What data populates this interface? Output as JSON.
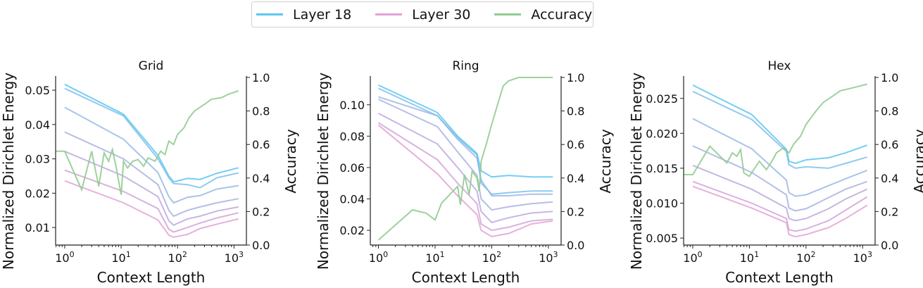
{
  "legend": {
    "items": [
      {
        "label": "Layer 18",
        "color": "#5cc6f2"
      },
      {
        "label": "Layer 30",
        "color": "#e3a2d4"
      },
      {
        "label": "Accuracy",
        "color": "#92cc92"
      }
    ]
  },
  "colors": {
    "energy_gradient": [
      "#5cc6f2",
      "#7fc0ea",
      "#9bb8e6",
      "#aab1e2",
      "#bca9de",
      "#d2a5d8",
      "#e3a2d4"
    ],
    "accuracy": "#92cc92"
  },
  "chart_data": [
    {
      "type": "line",
      "title": "Grid",
      "xlabel": "Context Length",
      "ylabel": "Normalized Dirichlet Energy",
      "y2label": "Accuracy",
      "xscale": "log",
      "xlim": [
        0.69,
        1660
      ],
      "xticks": [
        "10^0",
        "10^1",
        "10^2",
        "10^3"
      ],
      "ylim": [
        0.0049,
        0.0537
      ],
      "yticks": [
        0.01,
        0.02,
        0.03,
        0.04,
        0.05
      ],
      "ytick_labels": [
        "0.01",
        "0.02",
        "0.03",
        "0.04",
        "0.05"
      ],
      "y2lim": [
        0,
        1
      ],
      "y2ticks": [
        "0.0",
        "0.2",
        "0.4",
        "0.6",
        "0.8",
        "1.0"
      ],
      "energy_x": [
        1,
        11,
        45,
        70,
        85,
        150,
        250,
        500,
        1200
      ],
      "energy_series": [
        [
          0.0517,
          0.043,
          0.031,
          0.025,
          0.0233,
          0.0243,
          0.024,
          0.0258,
          0.0274
        ],
        [
          0.0505,
          0.0425,
          0.03,
          0.0245,
          0.0228,
          0.0225,
          0.0216,
          0.0245,
          0.0259
        ],
        [
          0.045,
          0.0357,
          0.026,
          0.019,
          0.0172,
          0.0188,
          0.0193,
          0.0212,
          0.0222
        ],
        [
          0.0378,
          0.03,
          0.0225,
          0.015,
          0.0133,
          0.015,
          0.016,
          0.0172,
          0.0184
        ],
        [
          0.0322,
          0.025,
          0.019,
          0.012,
          0.0107,
          0.0125,
          0.0133,
          0.0148,
          0.016
        ],
        [
          0.0267,
          0.0205,
          0.0155,
          0.0095,
          0.0087,
          0.01,
          0.0113,
          0.0128,
          0.0143
        ],
        [
          0.0236,
          0.0172,
          0.0122,
          0.0078,
          0.0072,
          0.008,
          0.0097,
          0.011,
          0.0125
        ]
      ],
      "accuracy_x": [
        0.69,
        1,
        2,
        3,
        4,
        5,
        6,
        7,
        8,
        10,
        11,
        13,
        16,
        20,
        25,
        30,
        40,
        50,
        60,
        70,
        85,
        100,
        130,
        160,
        200,
        300,
        400,
        600,
        800,
        1200
      ],
      "accuracy": [
        0.56,
        0.56,
        0.33,
        0.56,
        0.35,
        0.55,
        0.5,
        0.57,
        0.48,
        0.3,
        0.5,
        0.46,
        0.5,
        0.51,
        0.47,
        0.52,
        0.5,
        0.56,
        0.54,
        0.62,
        0.6,
        0.66,
        0.7,
        0.76,
        0.8,
        0.84,
        0.87,
        0.88,
        0.9,
        0.92
      ]
    },
    {
      "type": "line",
      "title": "Ring",
      "xlabel": "Context Length",
      "ylabel": "Normalized Dirichlet Energy",
      "y2label": "Accuracy",
      "xscale": "log",
      "xlim": [
        0.72,
        1680
      ],
      "xticks": [
        "10^0",
        "10^1",
        "10^2",
        "10^3"
      ],
      "ylim": [
        0.0106,
        0.1174
      ],
      "yticks": [
        0.02,
        0.04,
        0.06,
        0.08,
        0.1
      ],
      "ytick_labels": [
        "0.02",
        "0.04",
        "0.06",
        "0.08",
        "0.10"
      ],
      "y2lim": [
        0,
        1
      ],
      "y2ticks": [
        "0.0",
        "0.2",
        "0.4",
        "0.6",
        "0.8",
        "1.0"
      ],
      "energy_x": [
        1,
        11,
        25,
        55,
        65,
        100,
        200,
        500,
        1200
      ],
      "energy_series": [
        [
          0.1125,
          0.095,
          0.08,
          0.069,
          0.058,
          0.054,
          0.055,
          0.054,
          0.054
        ],
        [
          0.1105,
          0.093,
          0.079,
          0.068,
          0.05,
          0.043,
          0.044,
          0.045,
          0.045
        ],
        [
          0.105,
          0.093,
          0.078,
          0.066,
          0.052,
          0.042,
          0.042,
          0.043,
          0.043
        ],
        [
          0.1035,
          0.086,
          0.07,
          0.055,
          0.04,
          0.033,
          0.035,
          0.037,
          0.038
        ],
        [
          0.0945,
          0.075,
          0.06,
          0.045,
          0.032,
          0.025,
          0.028,
          0.031,
          0.032
        ],
        [
          0.0885,
          0.065,
          0.05,
          0.037,
          0.024,
          0.02,
          0.022,
          0.026,
          0.027
        ],
        [
          0.087,
          0.056,
          0.042,
          0.03,
          0.02,
          0.016,
          0.018,
          0.024,
          0.026
        ]
      ],
      "accuracy_x": [
        1,
        4,
        7,
        10,
        13,
        25,
        28,
        33,
        40,
        45,
        55,
        60,
        65,
        80,
        100,
        130,
        160,
        200,
        300,
        1200
      ],
      "accuracy": [
        0.03,
        0.21,
        0.19,
        0.15,
        0.25,
        0.35,
        0.24,
        0.42,
        0.3,
        0.44,
        0.4,
        0.32,
        0.5,
        0.6,
        0.72,
        0.85,
        0.95,
        0.98,
        1.0,
        1.0
      ]
    },
    {
      "type": "line",
      "title": "Hex",
      "xlabel": "Context Length",
      "ylabel": "Normalized Dirichlet Energy",
      "y2label": "Accuracy",
      "xscale": "log",
      "xlim": [
        0.69,
        1660
      ],
      "xticks": [
        "10^0",
        "10^1",
        "10^2",
        "10^3"
      ],
      "ylim": [
        0.004,
        0.028
      ],
      "yticks": [
        0.005,
        0.01,
        0.015,
        0.02,
        0.025
      ],
      "ytick_labels": [
        "0.005",
        "0.010",
        "0.015",
        "0.020",
        "0.025"
      ],
      "y2lim": [
        0,
        1
      ],
      "y2ticks": [
        "0.0",
        "0.2",
        "0.4",
        "0.6",
        "0.8",
        "1.0"
      ],
      "energy_x": [
        1,
        11,
        45,
        50,
        65,
        100,
        250,
        500,
        1200
      ],
      "energy_series": [
        [
          0.0269,
          0.0227,
          0.0177,
          0.016,
          0.0157,
          0.0162,
          0.0165,
          0.0172,
          0.0183
        ],
        [
          0.026,
          0.022,
          0.0174,
          0.0155,
          0.015,
          0.0152,
          0.015,
          0.0157,
          0.0166
        ],
        [
          0.0221,
          0.0178,
          0.0133,
          0.0115,
          0.011,
          0.0112,
          0.0125,
          0.0135,
          0.0147
        ],
        [
          0.0182,
          0.0144,
          0.0112,
          0.0093,
          0.0089,
          0.0092,
          0.0108,
          0.012,
          0.0131
        ],
        [
          0.0154,
          0.012,
          0.0093,
          0.0078,
          0.0075,
          0.0078,
          0.0092,
          0.0106,
          0.012
        ],
        [
          0.0131,
          0.01,
          0.0078,
          0.0062,
          0.006,
          0.0063,
          0.0075,
          0.009,
          0.0109
        ],
        [
          0.0124,
          0.0093,
          0.0072,
          0.0055,
          0.0052,
          0.0055,
          0.0065,
          0.0078,
          0.0097
        ]
      ],
      "accuracy_x": [
        0.69,
        1,
        2,
        4,
        5,
        6,
        7,
        8,
        10,
        15,
        20,
        25,
        30,
        40,
        50,
        60,
        80,
        100,
        150,
        200,
        300,
        400,
        700,
        1200
      ],
      "accuracy": [
        0.42,
        0.42,
        0.59,
        0.49,
        0.55,
        0.53,
        0.57,
        0.43,
        0.41,
        0.5,
        0.45,
        0.5,
        0.55,
        0.58,
        0.55,
        0.6,
        0.65,
        0.72,
        0.8,
        0.85,
        0.89,
        0.92,
        0.94,
        0.96
      ]
    }
  ]
}
